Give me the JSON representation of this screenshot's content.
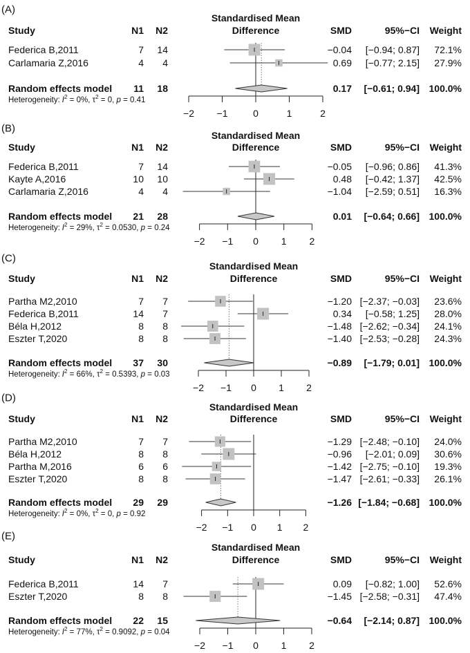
{
  "headers": {
    "study": "Study",
    "n1": "N1",
    "n2": "N2",
    "title_line1": "Standardised Mean",
    "title_line2": "Difference",
    "smd": "SMD",
    "ci": "95%−CI",
    "weight": "Weight"
  },
  "het_label": "Heterogeneity:",
  "colors": {
    "box": "#c2c2c2",
    "diamond": "#c8c8c8",
    "line": "#333333"
  },
  "chart_data": [
    {
      "type": "forest",
      "panel": "(A)",
      "x_ticks": [
        "−2",
        "−1",
        "0",
        "1",
        "2"
      ],
      "xlim": [
        -2,
        2
      ],
      "studies": [
        {
          "name": "Federica B,2011",
          "n1": "7",
          "n2": "14",
          "smd": -0.04,
          "lower": -0.94,
          "upper": 0.87,
          "weight": 72.1,
          "smd_text": "−0.04",
          "ci_text": "[−0.94; 0.87]",
          "weight_text": "72.1%"
        },
        {
          "name": "Carlamaria Z,2016",
          "n1": "4",
          "n2": "4",
          "smd": 0.69,
          "lower": -0.77,
          "upper": 2.15,
          "weight": 27.9,
          "smd_text": "0.69",
          "ci_text": "[−0.77; 2.15]",
          "weight_text": "27.9%"
        }
      ],
      "pooled": {
        "name": "Random effects model",
        "n1": "11",
        "n2": "18",
        "smd": 0.17,
        "lower": -0.61,
        "upper": 0.94,
        "smd_text": "0.17",
        "ci_text": "[−0.61; 0.94]",
        "weight_text": "100.0%"
      },
      "het": {
        "I2": "0%",
        "tau2": "0",
        "p": "0.41"
      }
    },
    {
      "type": "forest",
      "panel": "(B)",
      "x_ticks": [
        "−2",
        "−1",
        "0",
        "1",
        "2"
      ],
      "xlim": [
        -2,
        2
      ],
      "studies": [
        {
          "name": "Federica B,2011",
          "n1": "7",
          "n2": "14",
          "smd": -0.05,
          "lower": -0.96,
          "upper": 0.86,
          "weight": 41.3,
          "smd_text": "−0.05",
          "ci_text": "[−0.96; 0.86]",
          "weight_text": "41.3%"
        },
        {
          "name": "Kayte A,2016",
          "n1": "10",
          "n2": "10",
          "smd": 0.48,
          "lower": -0.42,
          "upper": 1.37,
          "weight": 42.5,
          "smd_text": "0.48",
          "ci_text": "[−0.42; 1.37]",
          "weight_text": "42.5%"
        },
        {
          "name": "Carlamaria Z,2016",
          "n1": "4",
          "n2": "4",
          "smd": -1.04,
          "lower": -2.59,
          "upper": 0.51,
          "weight": 16.3,
          "smd_text": "−1.04",
          "ci_text": "[−2.59; 0.51]",
          "weight_text": "16.3%"
        }
      ],
      "pooled": {
        "name": "Random effects model",
        "n1": "21",
        "n2": "28",
        "smd": 0.01,
        "lower": -0.64,
        "upper": 0.66,
        "smd_text": "0.01",
        "ci_text": "[−0.64; 0.66]",
        "weight_text": "100.0%"
      },
      "het": {
        "I2": "29%",
        "tau2": "0.0530",
        "p": "0.24"
      }
    },
    {
      "type": "forest",
      "panel": "(C)",
      "x_ticks": [
        "−2",
        "−1",
        "0",
        "1",
        "2"
      ],
      "xlim": [
        -2,
        2
      ],
      "studies": [
        {
          "name": "Partha M2,2010",
          "n1": "7",
          "n2": "7",
          "smd": -1.2,
          "lower": -2.37,
          "upper": -0.03,
          "weight": 23.6,
          "smd_text": "−1.20",
          "ci_text": "[−2.37; −0.03]",
          "weight_text": "23.6%"
        },
        {
          "name": "Federica B,2011",
          "n1": "14",
          "n2": "7",
          "smd": 0.34,
          "lower": -0.58,
          "upper": 1.25,
          "weight": 28.0,
          "smd_text": "0.34",
          "ci_text": "[−0.58;  1.25]",
          "weight_text": "28.0%"
        },
        {
          "name": "Béla H,2012",
          "n1": "8",
          "n2": "8",
          "smd": -1.48,
          "lower": -2.62,
          "upper": -0.34,
          "weight": 24.1,
          "smd_text": "−1.48",
          "ci_text": "[−2.62; −0.34]",
          "weight_text": "24.1%"
        },
        {
          "name": "Eszter T,2020",
          "n1": "8",
          "n2": "8",
          "smd": -1.4,
          "lower": -2.53,
          "upper": -0.28,
          "weight": 24.3,
          "smd_text": "−1.40",
          "ci_text": "[−2.53; −0.28]",
          "weight_text": "24.3%"
        }
      ],
      "pooled": {
        "name": "Random effects model",
        "n1": "37",
        "n2": "30",
        "smd": -0.89,
        "lower": -1.79,
        "upper": 0.01,
        "smd_text": "−0.89",
        "ci_text": "[−1.79;  0.01]",
        "weight_text": "100.0%"
      },
      "het": {
        "I2": "66%",
        "tau2": "0.5393",
        "p": "0.03"
      }
    },
    {
      "type": "forest",
      "panel": "(D)",
      "x_ticks": [
        "−2",
        "−1",
        "0",
        "1",
        "2"
      ],
      "xlim": [
        -2,
        2
      ],
      "studies": [
        {
          "name": "Partha M2,2010",
          "n1": "7",
          "n2": "7",
          "smd": -1.29,
          "lower": -2.48,
          "upper": -0.1,
          "weight": 24.0,
          "smd_text": "−1.29",
          "ci_text": "[−2.48; −0.10]",
          "weight_text": "24.0%"
        },
        {
          "name": "Béla H,2012",
          "n1": "8",
          "n2": "8",
          "smd": -0.96,
          "lower": -2.01,
          "upper": 0.09,
          "weight": 30.6,
          "smd_text": "−0.96",
          "ci_text": "[−2.01;  0.09]",
          "weight_text": "30.6%"
        },
        {
          "name": "Partha M,2016",
          "n1": "6",
          "n2": "6",
          "smd": -1.42,
          "lower": -2.75,
          "upper": -0.1,
          "weight": 19.3,
          "smd_text": "−1.42",
          "ci_text": "[−2.75; −0.10]",
          "weight_text": "19.3%"
        },
        {
          "name": "Eszter T,2020",
          "n1": "8",
          "n2": "8",
          "smd": -1.47,
          "lower": -2.61,
          "upper": -0.33,
          "weight": 26.1,
          "smd_text": "−1.47",
          "ci_text": "[−2.61; −0.33]",
          "weight_text": "26.1%"
        }
      ],
      "pooled": {
        "name": "Random effects model",
        "n1": "29",
        "n2": "29",
        "smd": -1.26,
        "lower": -1.84,
        "upper": -0.68,
        "smd_text": "−1.26",
        "ci_text": "[−1.84; −0.68]",
        "weight_text": "100.0%"
      },
      "het": {
        "I2": "0%",
        "tau2": "0",
        "p": "0.92"
      }
    },
    {
      "type": "forest",
      "panel": "(E)",
      "x_ticks": [
        "−2",
        "−1",
        "0",
        "1",
        "2"
      ],
      "xlim": [
        -2,
        2
      ],
      "studies": [
        {
          "name": "Federica B,2011",
          "n1": "14",
          "n2": "7",
          "smd": 0.09,
          "lower": -0.82,
          "upper": 1.0,
          "weight": 52.6,
          "smd_text": "0.09",
          "ci_text": "[−0.82; 1.00]",
          "weight_text": "52.6%"
        },
        {
          "name": "Eszter T,2020",
          "n1": "8",
          "n2": "8",
          "smd": -1.45,
          "lower": -2.58,
          "upper": -0.31,
          "weight": 47.4,
          "smd_text": "−1.45",
          "ci_text": "[−2.58; −0.31]",
          "weight_text": "47.4%"
        }
      ],
      "pooled": {
        "name": "Random effects model",
        "n1": "22",
        "n2": "15",
        "smd": -0.64,
        "lower": -2.14,
        "upper": 0.87,
        "smd_text": "−0.64",
        "ci_text": "[−2.14; 0.87]",
        "weight_text": "100.0%"
      },
      "het": {
        "I2": "77%",
        "tau2": "0.9092",
        "p": "0.04"
      }
    }
  ]
}
